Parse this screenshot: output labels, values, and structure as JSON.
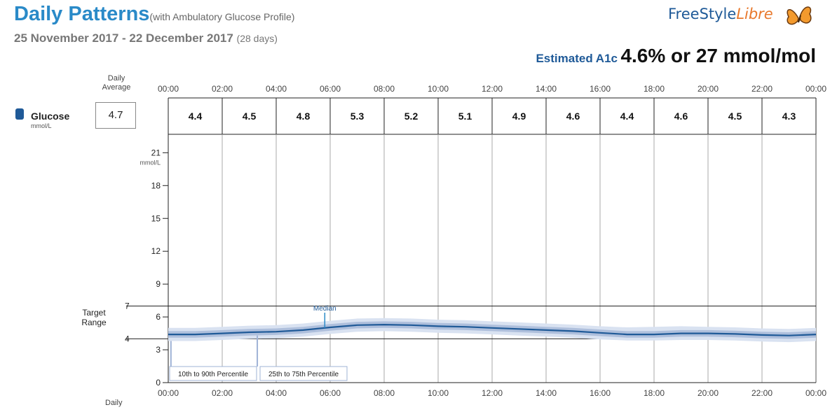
{
  "header": {
    "title": "Daily Patterns",
    "subtitle": "(with Ambulatory Glucose Profile)",
    "date_range": "25 November 2017 - 22 December 2017",
    "days": "(28 days)",
    "logo_free": "FreeStyle",
    "logo_libre": "Libre",
    "a1c_label": "Estimated A1c",
    "a1c_value": "4.6% or 27 mmol/mol"
  },
  "sidebar": {
    "daily_average_line1": "Daily",
    "daily_average_line2": "Average",
    "glucose_label": "Glucose",
    "glucose_unit": "mmol/L",
    "daily_average_value": "4.7",
    "target_range_line1": "Target",
    "target_range_line2": "Range",
    "daily_bottom": "Daily"
  },
  "chart_data": {
    "type": "line",
    "xlabel": "",
    "ylabel": "mmol/L",
    "x_ticks": [
      "00:00",
      "02:00",
      "04:00",
      "06:00",
      "08:00",
      "10:00",
      "12:00",
      "14:00",
      "16:00",
      "18:00",
      "20:00",
      "22:00",
      "00:00"
    ],
    "x_range": [
      0,
      24
    ],
    "y_range": [
      0,
      22.5
    ],
    "y_ticks": [
      0,
      3,
      6,
      9,
      12,
      15,
      18,
      21
    ],
    "y_tick_labels": [
      "0",
      "3",
      "6",
      "9",
      "12",
      "15",
      "18",
      "21"
    ],
    "target_range": {
      "low": 4,
      "high": 7,
      "low_label": "4",
      "high_label": "7"
    },
    "bi_hourly_averages": {
      "labels": [
        "4.4",
        "4.5",
        "4.8",
        "5.3",
        "5.2",
        "5.1",
        "4.9",
        "4.6",
        "4.4",
        "4.6",
        "4.5",
        "4.3"
      ],
      "values": [
        4.4,
        4.5,
        4.8,
        5.3,
        5.2,
        5.1,
        4.9,
        4.6,
        4.4,
        4.6,
        4.5,
        4.3
      ]
    },
    "x": [
      0,
      1,
      2,
      3,
      4,
      5,
      6,
      7,
      8,
      9,
      10,
      11,
      12,
      13,
      14,
      15,
      16,
      17,
      18,
      19,
      20,
      21,
      22,
      23,
      24
    ],
    "series": [
      {
        "name": "Median",
        "values": [
          4.4,
          4.4,
          4.5,
          4.6,
          4.65,
          4.8,
          5.05,
          5.25,
          5.3,
          5.25,
          5.15,
          5.1,
          5.0,
          4.9,
          4.8,
          4.7,
          4.55,
          4.4,
          4.4,
          4.5,
          4.5,
          4.45,
          4.35,
          4.3,
          4.4
        ]
      },
      {
        "name": "25th to 75th Percentile",
        "low": [
          4.1,
          4.1,
          4.2,
          4.3,
          4.35,
          4.5,
          4.75,
          4.95,
          5.0,
          4.95,
          4.85,
          4.8,
          4.7,
          4.6,
          4.5,
          4.4,
          4.25,
          4.1,
          4.1,
          4.2,
          4.2,
          4.15,
          4.05,
          4.0,
          4.1
        ],
        "high": [
          4.7,
          4.7,
          4.8,
          4.9,
          4.95,
          5.1,
          5.35,
          5.55,
          5.6,
          5.55,
          5.45,
          5.4,
          5.3,
          5.2,
          5.1,
          5.0,
          4.85,
          4.7,
          4.7,
          4.8,
          4.8,
          4.75,
          4.65,
          4.6,
          4.7
        ]
      },
      {
        "name": "10th to 90th Percentile",
        "low": [
          3.8,
          3.8,
          3.9,
          4.0,
          4.05,
          4.2,
          4.45,
          4.65,
          4.7,
          4.65,
          4.55,
          4.5,
          4.4,
          4.3,
          4.2,
          4.1,
          3.95,
          3.85,
          3.85,
          3.9,
          3.9,
          3.85,
          3.75,
          3.7,
          3.8
        ],
        "high": [
          5.0,
          5.0,
          5.1,
          5.2,
          5.25,
          5.4,
          5.65,
          5.85,
          5.9,
          5.85,
          5.75,
          5.7,
          5.6,
          5.5,
          5.4,
          5.3,
          5.15,
          5.05,
          5.1,
          5.15,
          5.1,
          5.05,
          4.95,
          4.9,
          5.0
        ]
      }
    ],
    "annotations": {
      "median": "Median",
      "p10_90": "10th to 90th Percentile",
      "p25_75": "25th to 75th Percentile"
    },
    "colors": {
      "median": "#1f5a98",
      "iqr": "#aebfdc",
      "outer": "#d9e2f1",
      "grid": "#999999",
      "accent": "#2a8ac8"
    }
  }
}
